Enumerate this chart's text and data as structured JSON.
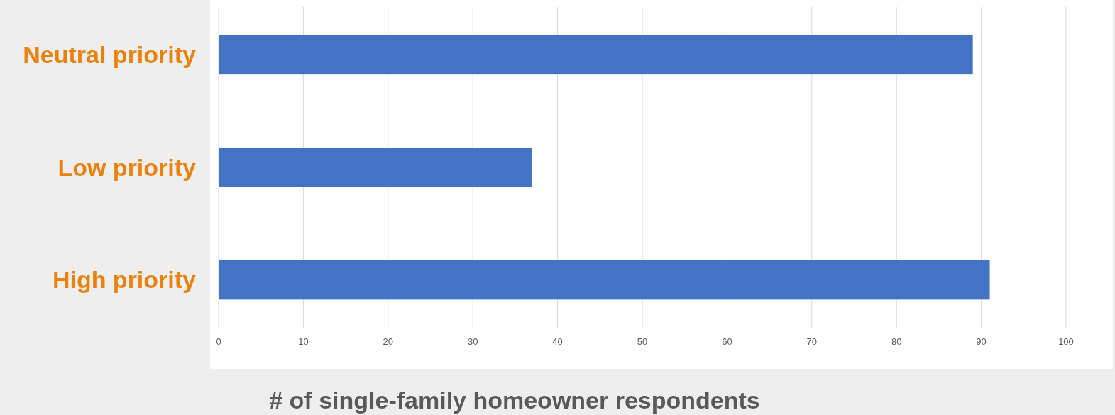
{
  "chart_data": {
    "type": "bar",
    "orientation": "horizontal",
    "xlabel": "# of single-family homeowner respondents",
    "categories": [
      "Neutral priority",
      "Low priority",
      "High priority"
    ],
    "values": [
      89,
      37,
      91
    ],
    "color": "#4472c4",
    "xlim": [
      0,
      100
    ],
    "xticks": [
      0,
      10,
      20,
      30,
      40,
      50,
      60,
      70,
      80,
      90,
      100
    ],
    "grid": "x"
  }
}
